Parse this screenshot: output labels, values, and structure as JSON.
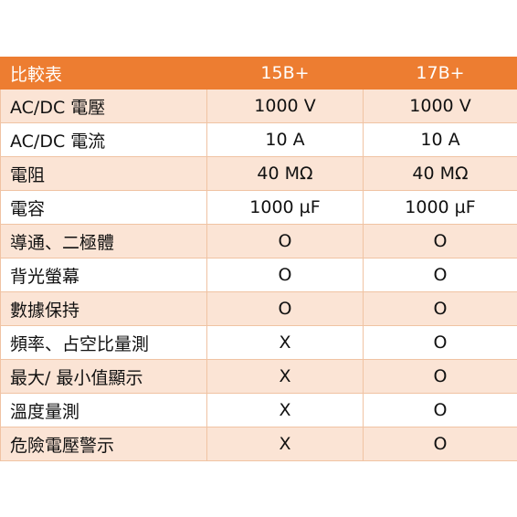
{
  "table": {
    "header": [
      "比較表",
      "15B+",
      "17B+"
    ],
    "rows": [
      [
        "AC/DC  電壓",
        "1000 V",
        "1000 V"
      ],
      [
        "AC/DC  電流",
        "10 A",
        "10 A"
      ],
      [
        "電阻",
        "40 MΩ",
        "40 MΩ"
      ],
      [
        "電容",
        "1000 µF",
        "1000 µF"
      ],
      [
        "導通、二極體",
        "O",
        "O"
      ],
      [
        "背光螢幕",
        "O",
        "O"
      ],
      [
        "數據保持",
        "O",
        "O"
      ],
      [
        "頻率、占空比量測",
        "X",
        "O"
      ],
      [
        "最大/  最小值顯示",
        "X",
        "O"
      ],
      [
        "溫度量測",
        "X",
        "O"
      ],
      [
        "危險電壓警示",
        "X",
        "O"
      ]
    ]
  },
  "colors": {
    "header_bg": "#ed7d31",
    "band_bg": "#fbe4d5",
    "border": "#f0c3a3"
  }
}
